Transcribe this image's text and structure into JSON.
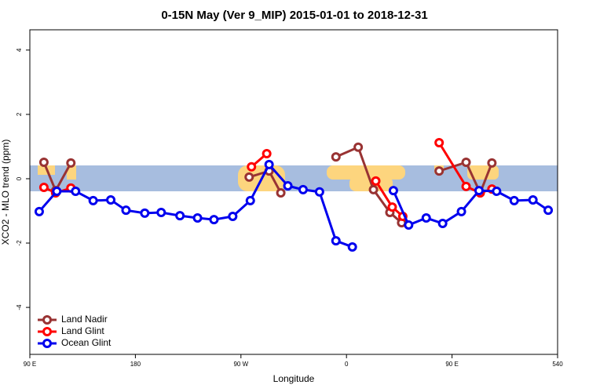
{
  "chart_data": {
    "type": "line",
    "title": "0-15N May (Ver 9_MIP)   2015-01-01 to 2018-12-31",
    "x_label": "Longitude",
    "y_label": "XCO2 - MLO trend (ppm)",
    "xlim": [
      90,
      540
    ],
    "ylim": [
      -5.46,
      4.63
    ],
    "xticks": [
      {
        "value": 90,
        "label": "90 E"
      },
      180,
      {
        "value": 270,
        "label": "90 W"
      },
      {
        "value": 360,
        "label": "0"
      },
      {
        "value": 450,
        "label": "90 E"
      },
      540
    ],
    "yticks": [
      -4,
      -2,
      0,
      2,
      4
    ],
    "legend": "bottom-left",
    "series": [
      {
        "name": "Land Nadir",
        "color": "#993333",
        "x": [
          102,
          112,
          125,
          200,
          277,
          294,
          304,
          330,
          351,
          370,
          383,
          397,
          407,
          420,
          439,
          462,
          474,
          484
        ],
        "values": [
          0.51,
          -0.37,
          0.49,
          null,
          0.05,
          0.24,
          -0.44,
          null,
          0.68,
          0.98,
          -0.34,
          -1.05,
          -1.37,
          null,
          0.24,
          0.51,
          -0.44,
          0.49
        ]
      },
      {
        "name": "Land Glint",
        "color": "#ff0000",
        "x": [
          102,
          112,
          125,
          200,
          279,
          292,
          340,
          385,
          399,
          408,
          420,
          439,
          462,
          474,
          484
        ],
        "values": [
          -0.27,
          -0.44,
          -0.29,
          null,
          0.37,
          0.78,
          null,
          -0.07,
          -0.88,
          -1.17,
          null,
          1.12,
          -0.24,
          -0.44,
          -0.32
        ]
      },
      {
        "name": "Ocean Glint",
        "color": "#0000ee",
        "x": [
          98,
          113,
          129,
          144,
          159,
          172,
          188,
          202,
          218,
          233,
          247,
          263,
          278,
          294,
          310,
          323,
          337,
          351,
          365,
          382,
          400,
          413,
          428,
          442,
          458,
          473,
          488,
          503,
          519,
          532
        ],
        "values": [
          -1.02,
          -0.39,
          -0.39,
          -0.68,
          -0.66,
          -0.98,
          -1.07,
          -1.05,
          -1.15,
          -1.22,
          -1.27,
          -1.17,
          -0.68,
          0.44,
          -0.22,
          -0.34,
          -0.41,
          -1.93,
          -2.12,
          null,
          -0.37,
          -1.44,
          -1.22,
          -1.39,
          -1.02,
          -0.37,
          -0.39,
          -0.68,
          -0.66,
          -0.98
        ]
      }
    ]
  }
}
